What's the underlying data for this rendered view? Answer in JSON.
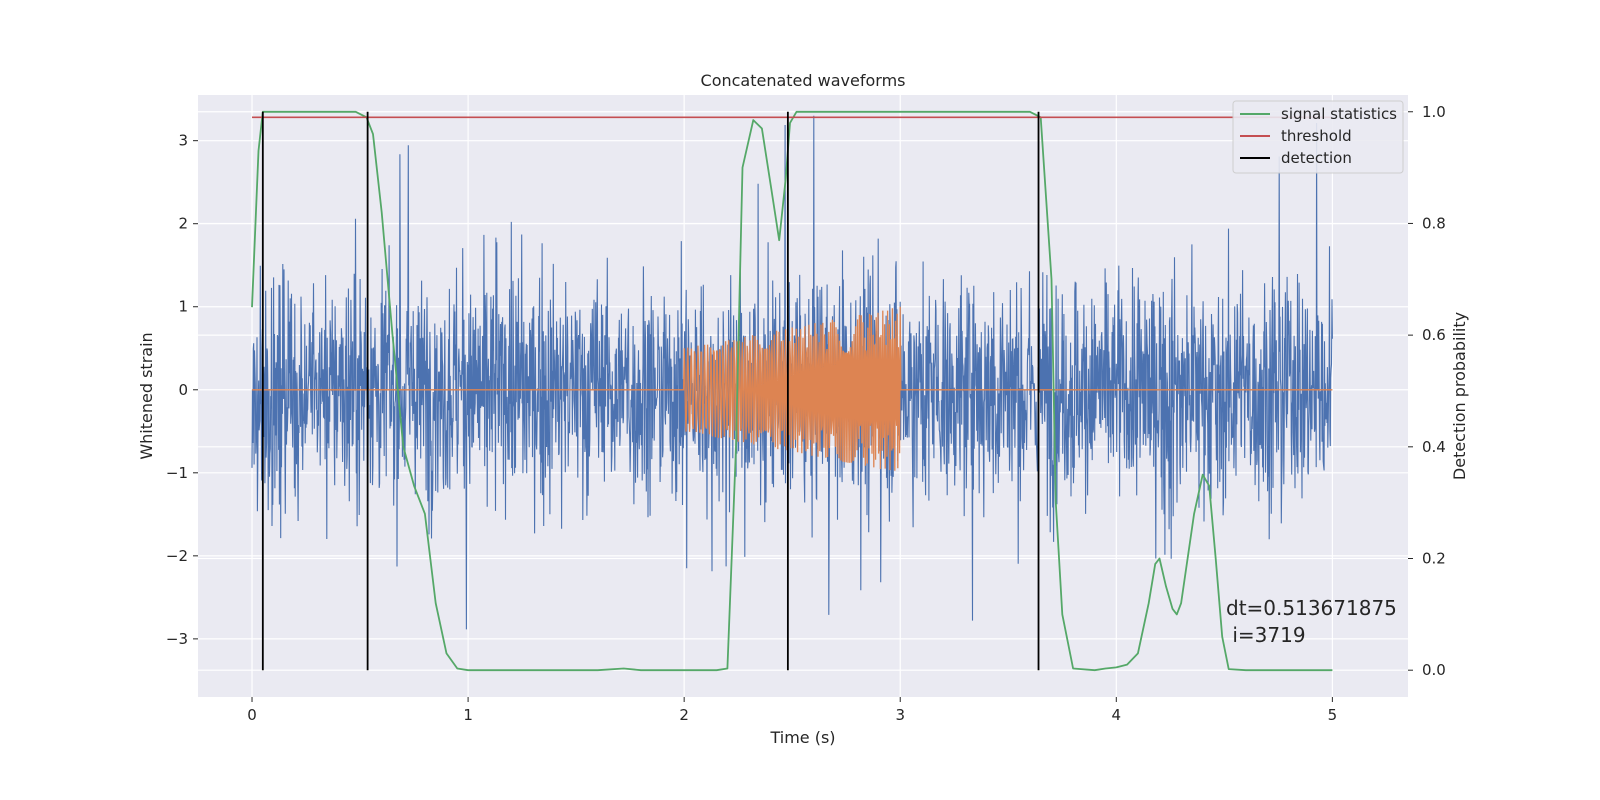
{
  "chart_data": {
    "type": "line",
    "title": "Concatenated waveforms",
    "xlabel": "Time (s)",
    "ylabel": "Whitened strain",
    "ylabel_right": "Detection probability",
    "xlim": [
      -0.25,
      5.35
    ],
    "ylim": [
      -3.7,
      3.55
    ],
    "ylim_right": [
      -0.048,
      1.03
    ],
    "xticks": [
      0,
      1,
      2,
      3,
      4,
      5
    ],
    "xtick_labels": [
      "0",
      "1",
      "2",
      "3",
      "4",
      "5"
    ],
    "yticks": [
      -3,
      -2,
      -1,
      0,
      1,
      2,
      3
    ],
    "ytick_labels": [
      "−3",
      "−2",
      "−1",
      "0",
      "1",
      "2",
      "3"
    ],
    "yticks_right": [
      0.0,
      0.2,
      0.4,
      0.6,
      0.8,
      1.0
    ],
    "ytick_labels_right": [
      "0.0",
      "0.2",
      "0.4",
      "0.6",
      "0.8",
      "1.0"
    ],
    "grid": true,
    "legend_position": "top-right",
    "series": [
      {
        "name": "signal statistics",
        "axis": "right",
        "color": "#55a868",
        "x": [
          0.0,
          0.03,
          0.05,
          0.08,
          0.12,
          0.2,
          0.3,
          0.4,
          0.48,
          0.53,
          0.56,
          0.6,
          0.65,
          0.7,
          0.75,
          0.8,
          0.85,
          0.9,
          0.95,
          1.0,
          1.3,
          1.6,
          1.72,
          1.8,
          2.0,
          2.15,
          2.2,
          2.24,
          2.27,
          2.32,
          2.36,
          2.4,
          2.44,
          2.47,
          2.49,
          2.52,
          2.6,
          3.0,
          3.4,
          3.6,
          3.65,
          3.7,
          3.72,
          3.75,
          3.8,
          3.9,
          3.95,
          4.0,
          4.05,
          4.1,
          4.15,
          4.18,
          4.2,
          4.23,
          4.26,
          4.28,
          4.3,
          4.33,
          4.36,
          4.4,
          4.43,
          4.46,
          4.49,
          4.52,
          4.6,
          4.8,
          5.0
        ],
        "y": [
          0.65,
          0.93,
          1.0,
          1.0,
          1.0,
          1.0,
          1.0,
          1.0,
          1.0,
          0.99,
          0.96,
          0.82,
          0.6,
          0.4,
          0.33,
          0.28,
          0.12,
          0.03,
          0.003,
          0.0,
          0.0,
          0.0,
          0.003,
          0.0,
          0.0,
          0.0,
          0.003,
          0.4,
          0.9,
          0.985,
          0.97,
          0.87,
          0.77,
          0.88,
          0.98,
          1.0,
          1.0,
          1.0,
          1.0,
          1.0,
          0.99,
          0.7,
          0.3,
          0.1,
          0.003,
          0.0,
          0.003,
          0.005,
          0.01,
          0.03,
          0.12,
          0.19,
          0.2,
          0.15,
          0.11,
          0.1,
          0.12,
          0.2,
          0.28,
          0.35,
          0.33,
          0.2,
          0.06,
          0.002,
          0.0,
          0.0,
          0.0
        ]
      },
      {
        "name": "threshold",
        "axis": "right",
        "color": "#c44e52",
        "x": [
          0.0,
          5.0
        ],
        "y": [
          0.99,
          0.99
        ]
      },
      {
        "name": "detection",
        "axis": "right",
        "color": "#000000",
        "type": "vlines",
        "x": [
          0.05,
          0.535,
          2.48,
          3.64
        ],
        "ymin": 0.0,
        "ymax": 1.0
      },
      {
        "name": "",
        "axis": "left",
        "color": "#4c72b0",
        "description": "whitened strain noise, amplitude ~ ±3.3",
        "x_range": [
          0.0,
          5.0
        ]
      },
      {
        "name": "",
        "axis": "left",
        "color": "#dd8452",
        "description": "injected chirp waveform, nonzero between 2.0 and 3.0",
        "x_range": [
          0.0,
          5.0
        ],
        "chirp_start": 2.0,
        "chirp_end": 3.0,
        "amp_start": 0.5,
        "amp_end": 1.0
      }
    ],
    "legend": [
      "signal statistics",
      "threshold",
      "detection"
    ],
    "annotation": [
      "dt=0.513671875",
      " i=3719"
    ]
  },
  "colors": {
    "axes_bg": "#eaeaf2",
    "grid": "#ffffff",
    "noise": "#4c72b0",
    "chirp": "#dd8452",
    "stat": "#55a868",
    "threshold": "#c44e52",
    "detection": "#000000"
  }
}
